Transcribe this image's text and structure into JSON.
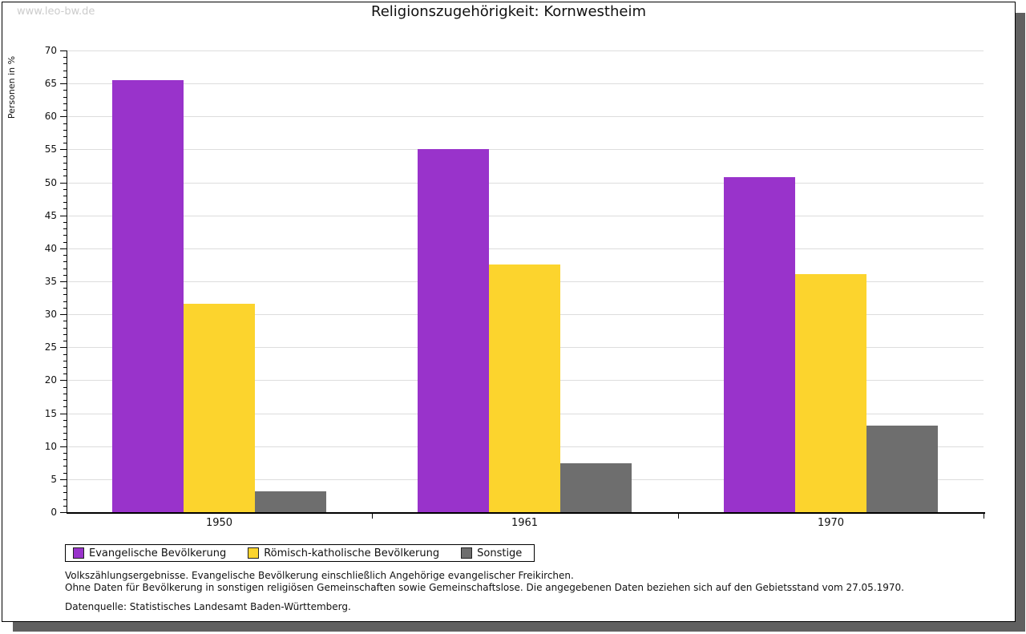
{
  "watermark": "www.leo-bw.de",
  "title": "Religionszugehörigkeit: Kornwestheim",
  "chart_data": {
    "type": "bar",
    "title": "Religionszugehörigkeit: Kornwestheim",
    "xlabel": "",
    "ylabel": "Personen in %",
    "ylim": [
      0,
      70
    ],
    "y_major_step": 5,
    "y_minor_step": 1,
    "grid": true,
    "legend_position": "bottom",
    "categories": [
      "1950",
      "1961",
      "1970"
    ],
    "series": [
      {
        "name": "Evangelische Bevölkerung",
        "color": "#9933CB",
        "values": [
          65.5,
          55.1,
          50.8
        ]
      },
      {
        "name": "Römisch-katholische Bevölkerung",
        "color": "#FCD42D",
        "values": [
          31.6,
          37.6,
          36.1
        ]
      },
      {
        "name": "Sonstige",
        "color": "#6E6E6E",
        "values": [
          3.1,
          7.4,
          13.1
        ]
      }
    ]
  },
  "footnotes": {
    "line1": "Volkszählungsergebnisse. Evangelische Bevölkerung einschließlich Angehörige evangelischer Freikirchen.",
    "line2": "Ohne Daten für Bevölkerung in sonstigen religiösen Gemeinschaften sowie Gemeinschaftslose. Die angegebenen Daten beziehen sich auf den Gebietsstand vom 27.05.1970.",
    "source": "Datenquelle: Statistisches Landesamt Baden-Württemberg."
  }
}
